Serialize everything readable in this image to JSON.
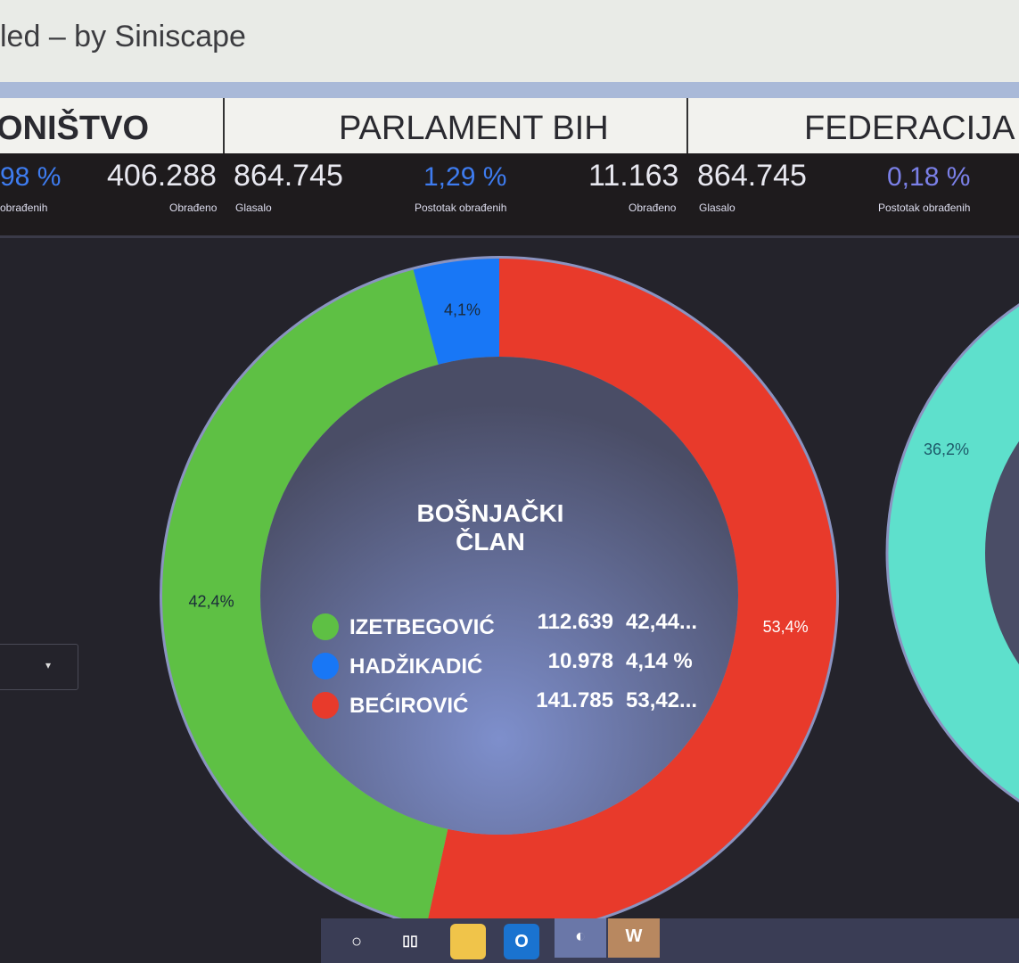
{
  "window": {
    "title": "led – by Siniscape"
  },
  "headers": [
    {
      "label": "ONIŠTVO"
    },
    {
      "label": "PARLAMENT BIH"
    },
    {
      "label": "FEDERACIJA"
    }
  ],
  "stats": [
    {
      "percent": "98 %",
      "percent_caption": "obrađenih",
      "processed": "406.288",
      "processed_caption": "Obrađeno",
      "voted": "864.745",
      "voted_caption": "Glasalo"
    },
    {
      "percent": "1,29 %",
      "percent_caption": "Postotak obrađenih",
      "processed": "11.163",
      "processed_caption": "Obrađeno",
      "voted": "864.745",
      "voted_caption": "Glasalo"
    },
    {
      "percent": "0,18 %",
      "percent_caption": "Postotak obrađenih"
    }
  ],
  "chart_data": {
    "type": "pie",
    "donut": true,
    "title": "BOŠNJAČKI ČLAN",
    "series": [
      {
        "name": "BEĆIROVIĆ",
        "votes": "141.785",
        "percent_label": "53,42...",
        "value": 53.4,
        "slice_label": "53,4%",
        "color": "#e83a2b"
      },
      {
        "name": "IZETBEGOVIĆ",
        "votes": "112.639",
        "percent_label": "42,44...",
        "value": 42.4,
        "slice_label": "42,4%",
        "color": "#5ec044"
      },
      {
        "name": "HADŽIKADIĆ",
        "votes": "10.978",
        "percent_label": "4,14 %",
        "value": 4.1,
        "slice_label": "4,1%",
        "color": "#1877f6"
      }
    ],
    "legend_order": [
      1,
      2,
      0
    ],
    "partial_chart": {
      "slice_label": "36,2%",
      "color": "#5ee0cc"
    }
  },
  "taskbar": {
    "apps": [
      "search-icon",
      "task-view-icon",
      "file-explorer-icon",
      "outlook-icon",
      "edge-icon",
      "word-icon"
    ]
  }
}
